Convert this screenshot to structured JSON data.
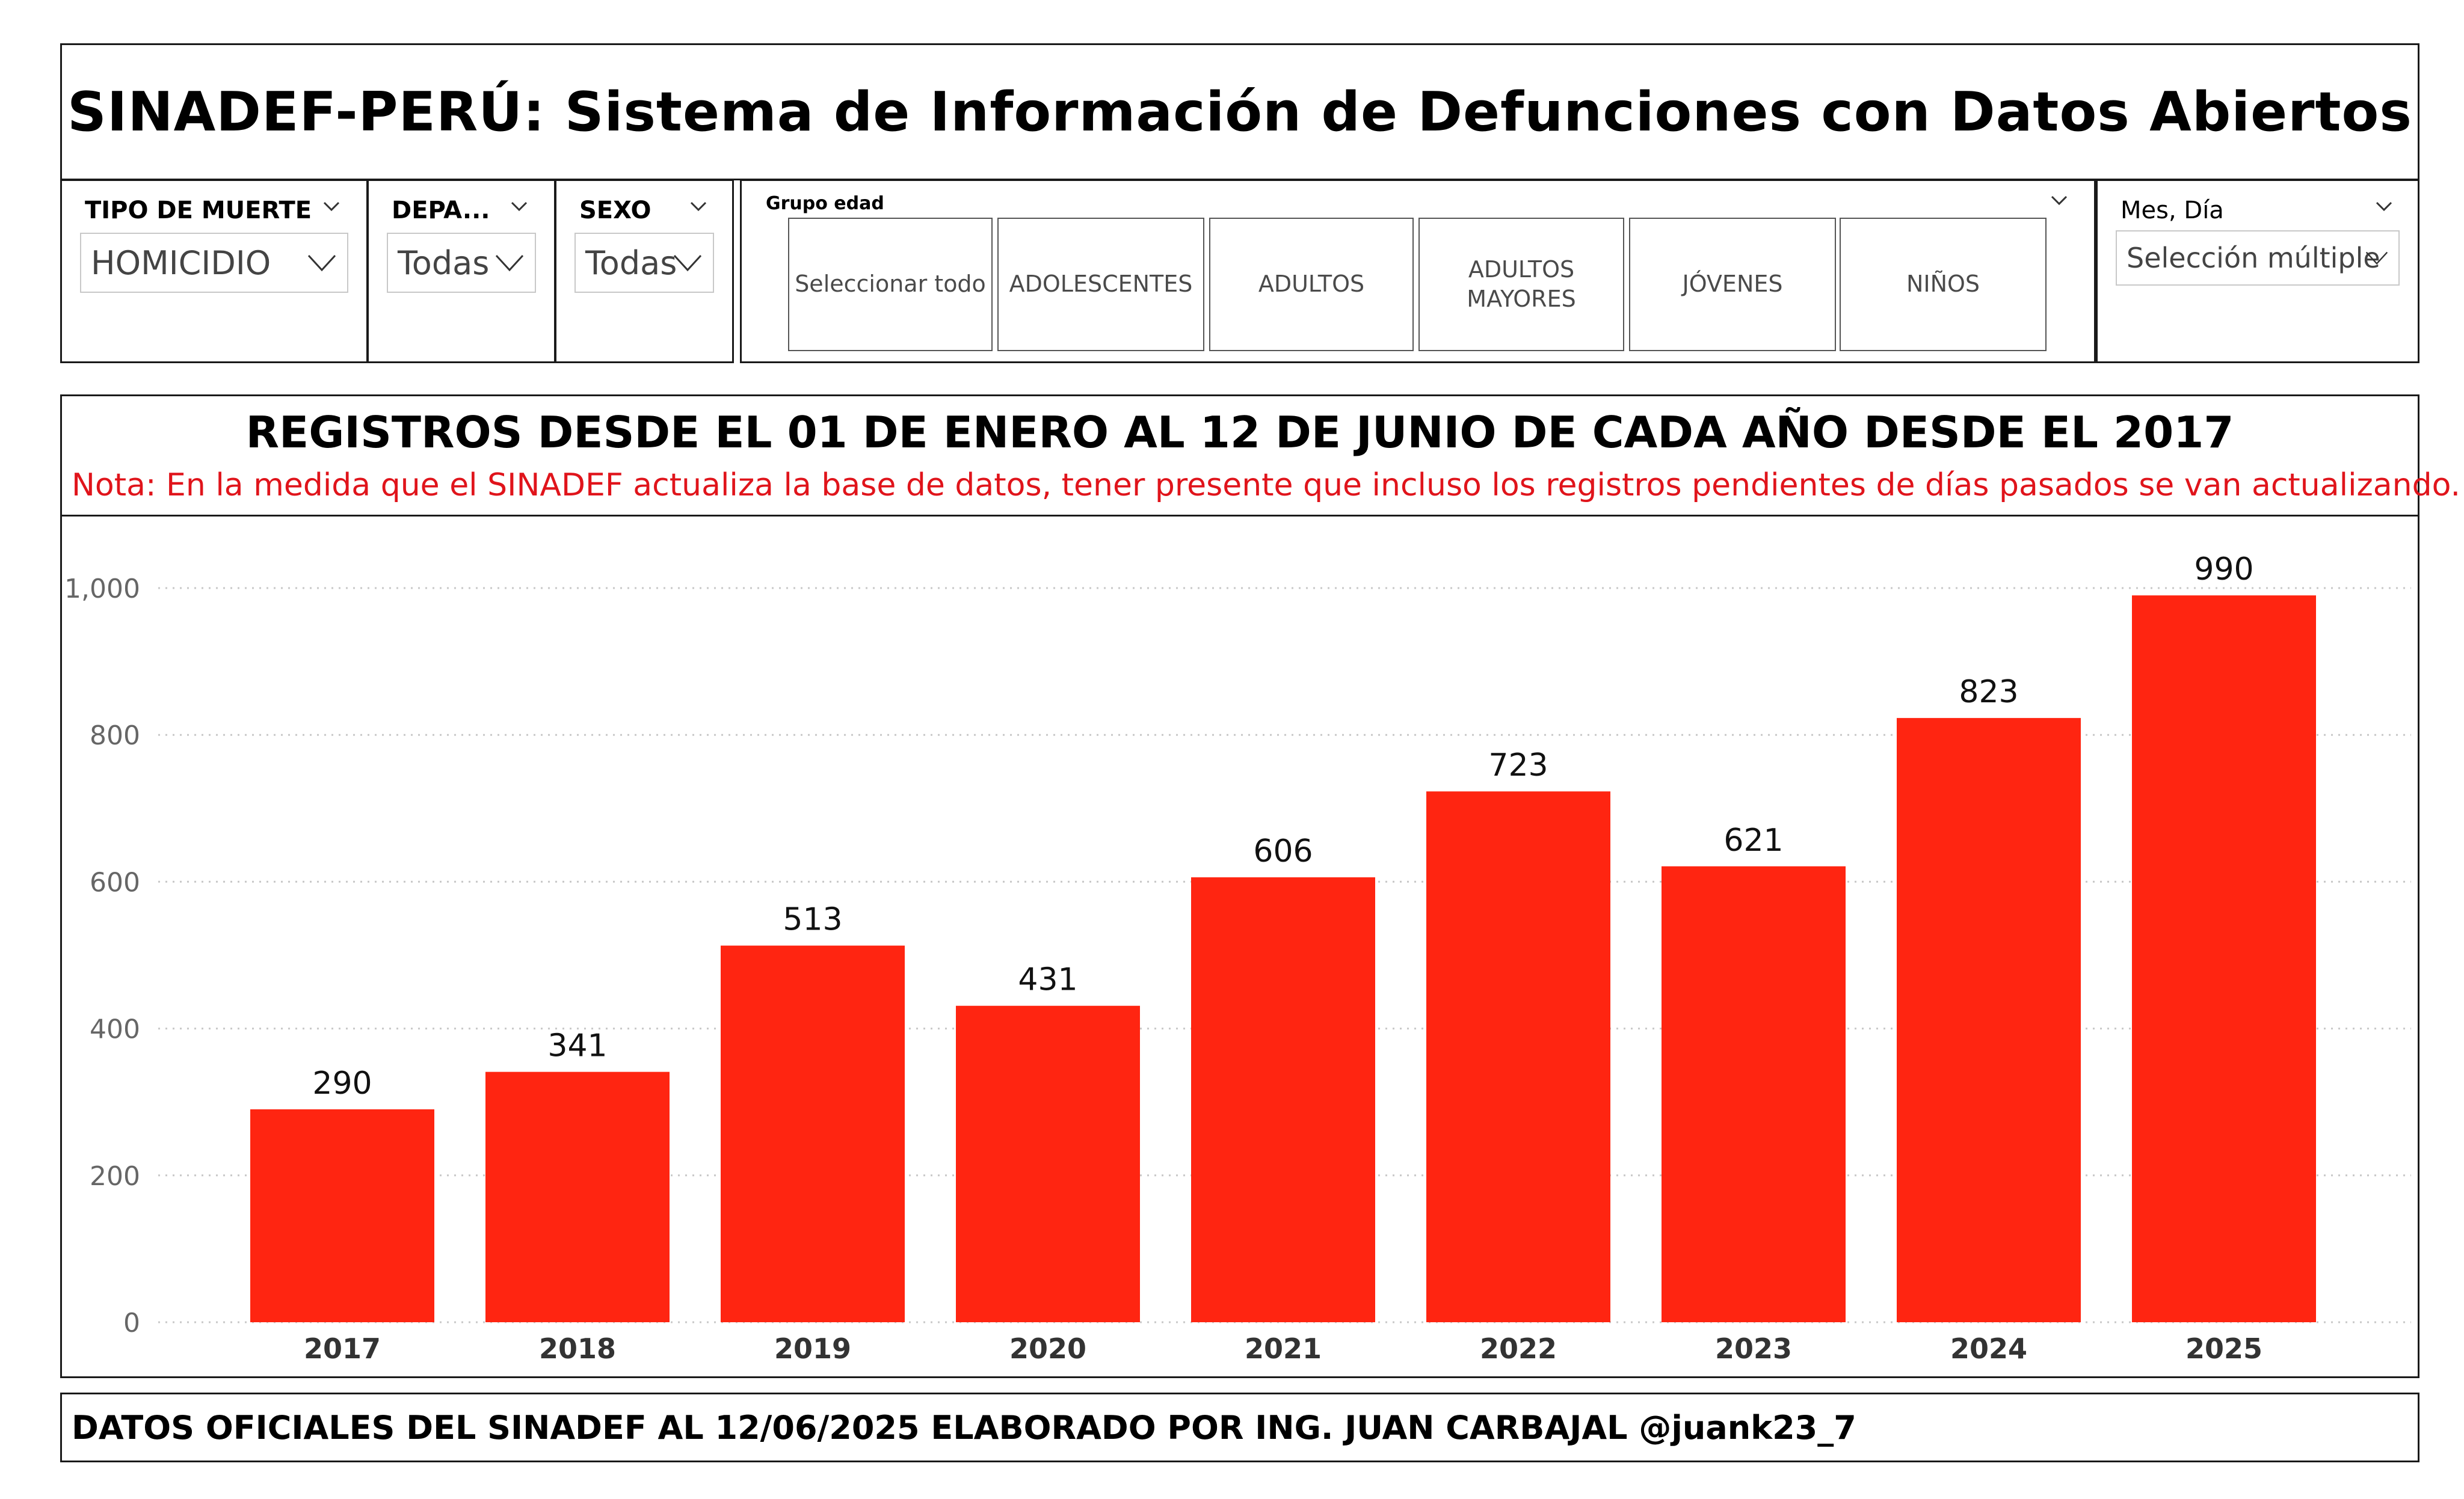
{
  "header": {
    "title": "SINADEF-PERÚ: Sistema de Información de Defunciones con Datos Abiertos"
  },
  "filters": {
    "tipo_muerte": {
      "label": "TIPO DE MUERTE",
      "value": "HOMICIDIO"
    },
    "departamento": {
      "label": "DEPA...",
      "value": "Todas"
    },
    "sexo": {
      "label": "SEXO",
      "value": "Todas"
    },
    "grupo_edad": {
      "label": "Grupo edad",
      "options": [
        "Seleccionar todo",
        "ADOLESCENTES",
        "ADULTOS",
        "ADULTOS MAYORES",
        "JÓVENES",
        "NIÑOS"
      ]
    },
    "mes_dia": {
      "label": "Mes, Día",
      "value": "Selección múltiple"
    }
  },
  "chart": {
    "title": "REGISTROS DESDE EL 01 DE ENERO AL 12 DE JUNIO DE CADA AÑO DESDE EL 2017",
    "note": "Nota: En la medida que el SINADEF actualiza la base de datos, tener presente que incluso los registros pendientes de días pasados se van actualizando."
  },
  "chart_data": {
    "type": "bar",
    "categories": [
      "2017",
      "2018",
      "2019",
      "2020",
      "2021",
      "2022",
      "2023",
      "2024",
      "2025"
    ],
    "values": [
      290,
      341,
      513,
      431,
      606,
      723,
      621,
      823,
      990
    ],
    "title": "REGISTROS DESDE EL 01 DE ENERO AL 12 DE JUNIO DE CADA AÑO DESDE EL 2017",
    "xlabel": "",
    "ylabel": "",
    "ylim": [
      0,
      1000
    ],
    "yticks": [
      "0",
      "200",
      "400",
      "600",
      "800",
      "1,000"
    ],
    "grid": true,
    "bar_color": "#ff2511",
    "data_labels": true
  },
  "footer": {
    "text": "DATOS OFICIALES DEL SINADEF AL 12/06/2025 ELABORADO POR ING. JUAN CARBAJAL @juank23_7"
  },
  "colors": {
    "bar": "#ff2511",
    "note": "#e0141b",
    "border": "#1a1a1a"
  }
}
